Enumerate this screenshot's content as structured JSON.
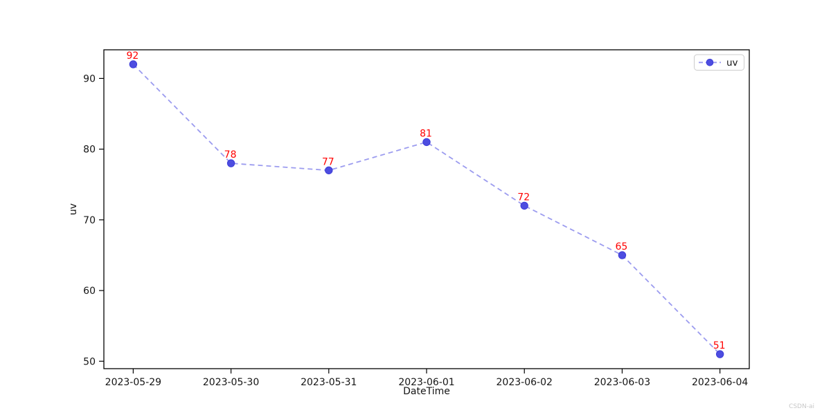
{
  "figure": {
    "background": "#ffffff",
    "watermark": "CSDN-ai"
  },
  "chart_data": {
    "type": "line",
    "title": "",
    "xlabel": "DateTime",
    "ylabel": "uv",
    "categories": [
      "2023-05-29",
      "2023-05-30",
      "2023-05-31",
      "2023-06-01",
      "2023-06-02",
      "2023-06-03",
      "2023-06-04"
    ],
    "series": [
      {
        "name": "uv",
        "values": [
          92,
          78,
          77,
          81,
          72,
          65,
          51
        ]
      }
    ],
    "data_labels": true,
    "yticks": [
      50,
      60,
      70,
      80,
      90
    ],
    "ylim": [
      48.95,
      94.05
    ],
    "grid": false,
    "legend_position": "upper right",
    "line_style": "dashed",
    "marker": "circle",
    "colors": {
      "line": "#9b9bef",
      "marker_fill": "#4d4de0",
      "marker_edge": "#3c3cd8",
      "data_label": "#ff0000",
      "axis": "#000000",
      "tick_label": "#141414",
      "legend_border": "#cccccc",
      "watermark": "#c8c8c8"
    }
  }
}
